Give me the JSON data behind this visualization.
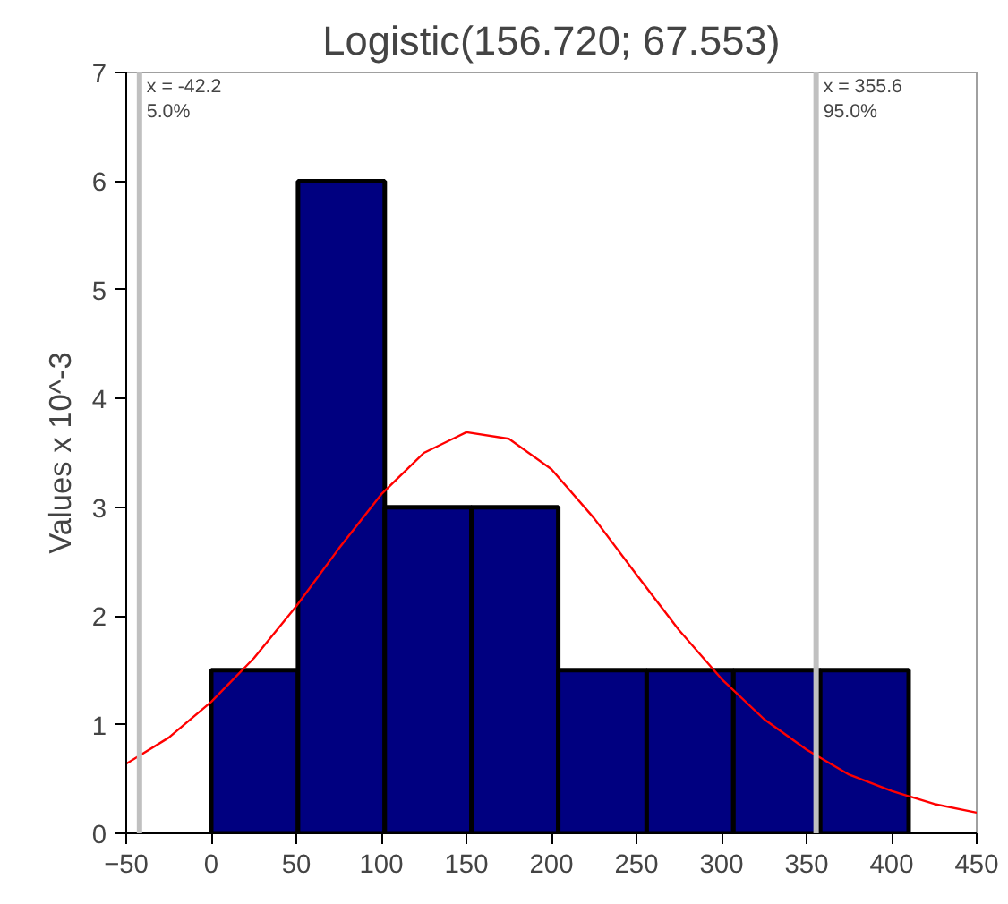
{
  "chart_data": {
    "type": "histogram",
    "title": "Logistic(156.720; 67.553)",
    "ylabel": "Values x 10^-3",
    "xlim": [
      -50,
      450
    ],
    "xticks": [
      -50,
      0,
      50,
      100,
      150,
      200,
      250,
      300,
      350,
      400,
      450
    ],
    "ylim": [
      0,
      7
    ],
    "yticks": [
      0,
      1,
      2,
      3,
      4,
      5,
      6,
      7
    ],
    "grid": false,
    "series": [
      {
        "color": "#000080",
        "bins": [
          0,
          51,
          102,
          153,
          204,
          256,
          307,
          358,
          410
        ],
        "values": [
          1.5,
          6,
          3,
          3,
          1.5,
          1.5,
          1.5,
          1.5
        ]
      },
      {
        "type": "line",
        "color": "#ff0000",
        "x": [
          -50,
          -25,
          0,
          25,
          50,
          75,
          100,
          125,
          150,
          175,
          200,
          225,
          250,
          275,
          300,
          325,
          350,
          375,
          400,
          425,
          450
        ],
        "values": [
          0.64,
          0.88,
          1.21,
          1.61,
          2.09,
          2.62,
          3.12,
          3.5,
          3.69,
          3.63,
          3.35,
          2.9,
          2.38,
          1.87,
          1.42,
          1.05,
          0.77,
          0.54,
          0.39,
          0.27,
          0.19
        ]
      }
    ],
    "ref_lines": [
      {
        "axis": "x",
        "value": -42.2,
        "label": "x = -42.2",
        "color": "#c0c0c0"
      },
      {
        "axis": "x",
        "value": 355.6,
        "label": "x = 355.6",
        "color": "#c0c0c0"
      }
    ],
    "annotations": [
      {
        "text": "5.0%",
        "x": -42.2,
        "y": 7
      },
      {
        "text": "95.0%",
        "x": 355.6,
        "y": 7
      }
    ]
  }
}
